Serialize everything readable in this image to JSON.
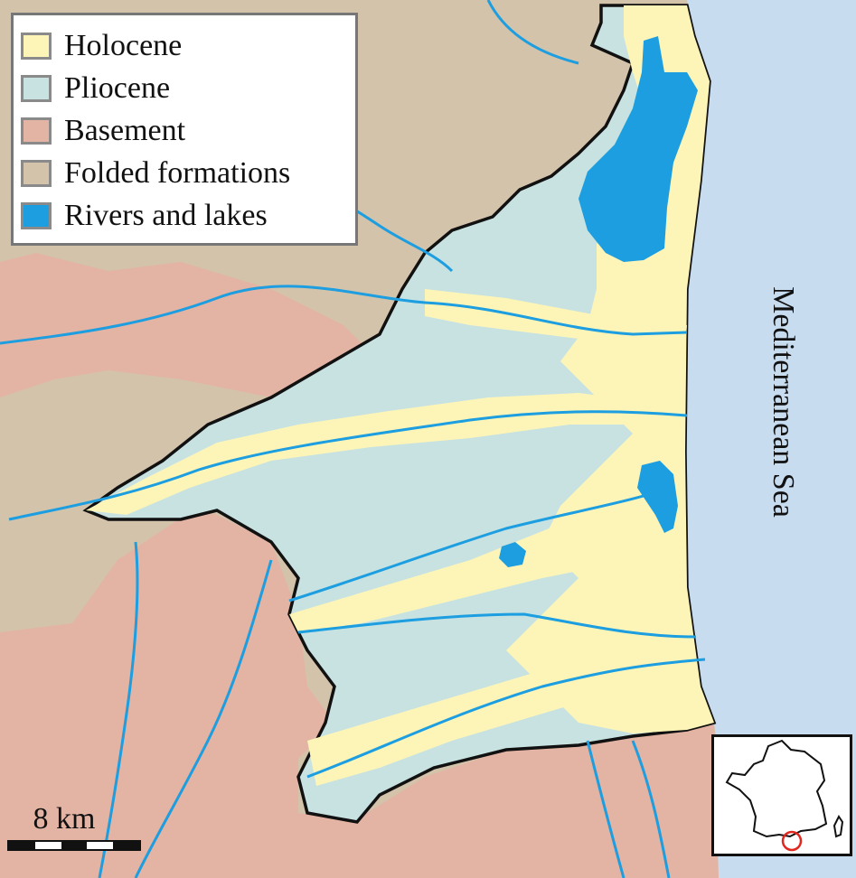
{
  "legend": {
    "items": [
      {
        "label": "Holocene",
        "color": "#fdf5b8"
      },
      {
        "label": "Pliocene",
        "color": "#c7e2e1"
      },
      {
        "label": "Basement",
        "color": "#e3b3a3"
      },
      {
        "label": "Folded formations",
        "color": "#d4c3ab"
      },
      {
        "label": "Rivers and lakes",
        "color": "#1c9ee0"
      }
    ]
  },
  "sea": {
    "label": "Mediterranean Sea",
    "color": "#c8dcf0"
  },
  "scale": {
    "label": "8 km"
  },
  "inset": {
    "country": "France",
    "highlight_color": "#e0281e"
  }
}
